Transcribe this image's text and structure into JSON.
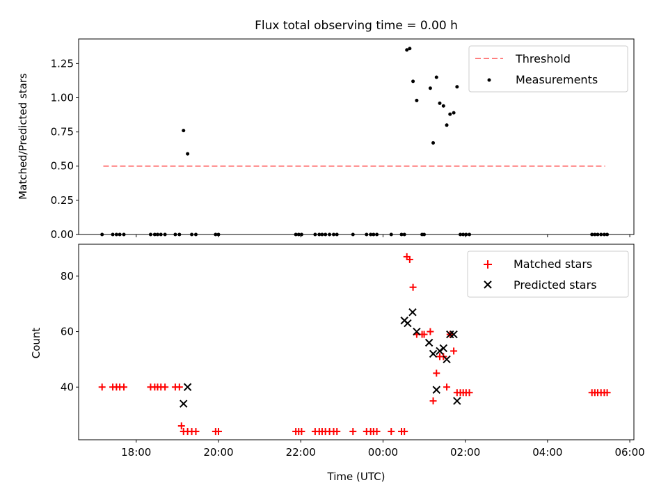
{
  "chart_data": [
    {
      "type": "scatter",
      "title": "Flux total observing time = 0.00 h",
      "xlabel": "",
      "ylabel": "Matched/Predicted stars",
      "x_unit": "hours since 2024-01-01 00:00 UTC",
      "xlim": [
        16.6,
        30.1
      ],
      "ylim": [
        0,
        1.43
      ],
      "yticks": [
        0.0,
        0.25,
        0.5,
        0.75,
        1.0,
        1.25
      ],
      "ytick_labels": [
        "0.00",
        "0.25",
        "0.50",
        "0.75",
        "1.00",
        "1.25"
      ],
      "legend_position": "top-right",
      "legend": [
        "Threshold",
        "Measurements"
      ],
      "threshold": {
        "name": "Threshold",
        "y": 0.5,
        "x_start": 17.2,
        "x_end": 29.4,
        "color": "#ff7f7f",
        "style": "dashed"
      },
      "series": [
        {
          "name": "Measurements",
          "color": "#000000",
          "marker": "dot",
          "points": [
            [
              17.17,
              0
            ],
            [
              17.43,
              0
            ],
            [
              17.52,
              0
            ],
            [
              17.6,
              0
            ],
            [
              17.7,
              0
            ],
            [
              18.35,
              0
            ],
            [
              18.45,
              0
            ],
            [
              18.52,
              0
            ],
            [
              18.6,
              0
            ],
            [
              18.7,
              0
            ],
            [
              18.95,
              0
            ],
            [
              19.05,
              0
            ],
            [
              19.15,
              0.76
            ],
            [
              19.25,
              0.59
            ],
            [
              19.35,
              0
            ],
            [
              19.45,
              0
            ],
            [
              19.93,
              0
            ],
            [
              20.0,
              0
            ],
            [
              21.88,
              0
            ],
            [
              21.95,
              0
            ],
            [
              22.02,
              0
            ],
            [
              22.35,
              0
            ],
            [
              22.45,
              0
            ],
            [
              22.52,
              0
            ],
            [
              22.6,
              0
            ],
            [
              22.7,
              0
            ],
            [
              22.8,
              0
            ],
            [
              22.88,
              0
            ],
            [
              23.27,
              0
            ],
            [
              23.6,
              0
            ],
            [
              23.7,
              0
            ],
            [
              23.77,
              0
            ],
            [
              23.85,
              0
            ],
            [
              24.2,
              0
            ],
            [
              24.45,
              0
            ],
            [
              24.52,
              0
            ],
            [
              24.58,
              1.35
            ],
            [
              24.65,
              1.36
            ],
            [
              24.73,
              1.12
            ],
            [
              24.82,
              0.98
            ],
            [
              24.95,
              0
            ],
            [
              25.0,
              0
            ],
            [
              25.15,
              1.07
            ],
            [
              25.22,
              0.67
            ],
            [
              25.3,
              1.15
            ],
            [
              25.38,
              0.96
            ],
            [
              25.47,
              0.94
            ],
            [
              25.55,
              0.8
            ],
            [
              25.63,
              0.88
            ],
            [
              25.72,
              0.89
            ],
            [
              25.8,
              1.08
            ],
            [
              25.88,
              0
            ],
            [
              25.95,
              0
            ],
            [
              26.02,
              0
            ],
            [
              26.1,
              0
            ],
            [
              29.08,
              0
            ],
            [
              29.15,
              0
            ],
            [
              29.22,
              0
            ],
            [
              29.3,
              0
            ],
            [
              29.38,
              0
            ],
            [
              29.45,
              0
            ]
          ]
        }
      ]
    },
    {
      "type": "scatter",
      "title": "",
      "xlabel": "Time (UTC)",
      "ylabel": "Count",
      "x_unit": "hours since 2024-01-01 00:00 UTC",
      "xlim": [
        16.6,
        30.1
      ],
      "ylim": [
        21,
        91.5
      ],
      "xticks": [
        18,
        20,
        22,
        24,
        26,
        28,
        30
      ],
      "xtick_labels": [
        "18:00",
        "20:00",
        "22:00",
        "00:00",
        "02:00",
        "04:00",
        "06:00"
      ],
      "yticks": [
        40,
        60,
        80
      ],
      "ytick_labels": [
        "40",
        "60",
        "80"
      ],
      "legend_position": "top-right",
      "legend": [
        "Matched stars",
        "Predicted stars"
      ],
      "series": [
        {
          "name": "Matched stars",
          "color": "#ff0000",
          "marker": "plus",
          "points": [
            [
              17.17,
              40
            ],
            [
              17.43,
              40
            ],
            [
              17.52,
              40
            ],
            [
              17.6,
              40
            ],
            [
              17.7,
              40
            ],
            [
              18.35,
              40
            ],
            [
              18.45,
              40
            ],
            [
              18.52,
              40
            ],
            [
              18.6,
              40
            ],
            [
              18.7,
              40
            ],
            [
              18.95,
              40
            ],
            [
              19.05,
              40
            ],
            [
              19.1,
              26
            ],
            [
              19.15,
              24
            ],
            [
              19.25,
              24
            ],
            [
              19.35,
              24
            ],
            [
              19.45,
              24
            ],
            [
              19.93,
              24
            ],
            [
              20.0,
              24
            ],
            [
              21.88,
              24
            ],
            [
              21.95,
              24
            ],
            [
              22.02,
              24
            ],
            [
              22.35,
              24
            ],
            [
              22.45,
              24
            ],
            [
              22.52,
              24
            ],
            [
              22.6,
              24
            ],
            [
              22.7,
              24
            ],
            [
              22.8,
              24
            ],
            [
              22.88,
              24
            ],
            [
              23.27,
              24
            ],
            [
              23.6,
              24
            ],
            [
              23.7,
              24
            ],
            [
              23.77,
              24
            ],
            [
              23.85,
              24
            ],
            [
              24.2,
              24
            ],
            [
              24.45,
              24
            ],
            [
              24.52,
              24
            ],
            [
              24.58,
              87
            ],
            [
              24.65,
              86
            ],
            [
              24.73,
              76
            ],
            [
              24.82,
              59
            ],
            [
              24.95,
              59
            ],
            [
              25.0,
              59
            ],
            [
              25.15,
              60
            ],
            [
              25.22,
              35
            ],
            [
              25.3,
              45
            ],
            [
              25.38,
              51
            ],
            [
              25.47,
              51
            ],
            [
              25.55,
              40
            ],
            [
              25.63,
              59
            ],
            [
              25.72,
              53
            ],
            [
              25.8,
              38
            ],
            [
              25.88,
              38
            ],
            [
              25.95,
              38
            ],
            [
              26.02,
              38
            ],
            [
              26.1,
              38
            ],
            [
              29.08,
              38
            ],
            [
              29.15,
              38
            ],
            [
              29.22,
              38
            ],
            [
              29.3,
              38
            ],
            [
              29.38,
              38
            ],
            [
              29.45,
              38
            ]
          ]
        },
        {
          "name": "Predicted stars",
          "color": "#000000",
          "marker": "x",
          "points": [
            [
              19.15,
              34
            ],
            [
              19.25,
              40
            ],
            [
              24.52,
              64
            ],
            [
              24.6,
              63
            ],
            [
              24.72,
              67
            ],
            [
              24.82,
              60
            ],
            [
              25.12,
              56
            ],
            [
              25.22,
              52
            ],
            [
              25.3,
              39
            ],
            [
              25.38,
              53
            ],
            [
              25.47,
              54
            ],
            [
              25.55,
              50
            ],
            [
              25.63,
              59
            ],
            [
              25.72,
              59
            ],
            [
              25.8,
              35
            ]
          ]
        }
      ]
    }
  ]
}
